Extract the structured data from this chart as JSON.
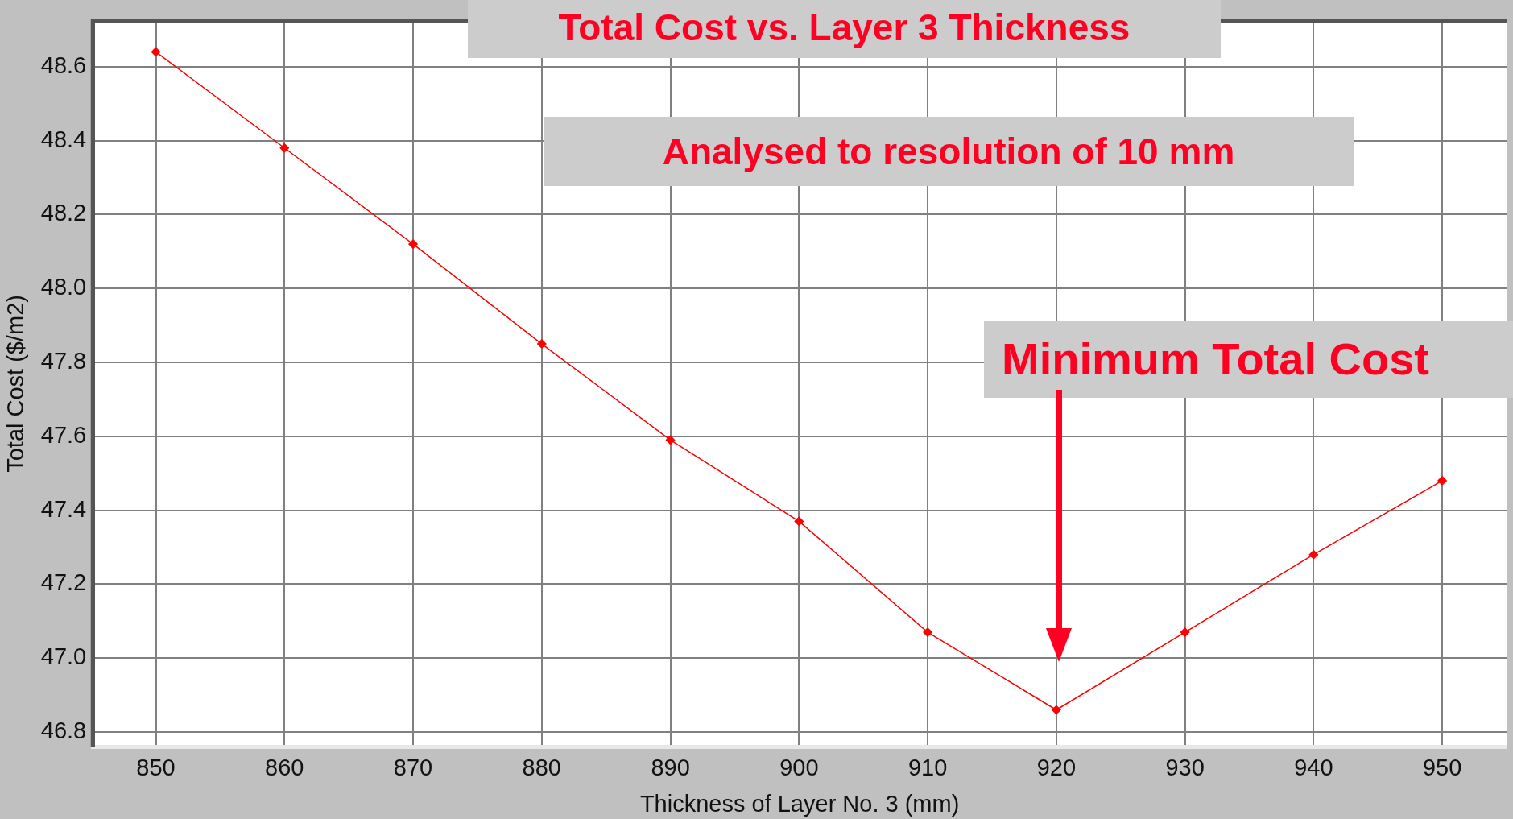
{
  "chart_data": {
    "type": "line",
    "title": "Total Cost vs. Layer 3 Thickness",
    "xlabel": "Thickness of Layer No. 3 (mm)",
    "ylabel": "Total Cost ($/m2)",
    "x": [
      850,
      860,
      870,
      880,
      890,
      900,
      910,
      920,
      930,
      940,
      950
    ],
    "series": [
      {
        "color": "#ff0000",
        "values": [
          48.64,
          48.38,
          48.12,
          47.85,
          47.59,
          47.37,
          47.07,
          46.86,
          47.07,
          47.28,
          47.48
        ]
      }
    ],
    "xlim": [
      845.1,
      955
    ],
    "xticks": [
      850,
      860,
      870,
      880,
      890,
      900,
      910,
      920,
      930,
      940,
      950
    ],
    "ylim": [
      46.76,
      48.725
    ],
    "yticks": [
      {
        "value": 46.8,
        "label": "46.8"
      },
      {
        "value": 47,
        "label": "47.0"
      },
      {
        "value": 47.2,
        "label": "47.2"
      },
      {
        "value": 47.4,
        "label": "47.4"
      },
      {
        "value": 47.6,
        "label": "47.6"
      },
      {
        "value": 47.8,
        "label": "47.8"
      },
      {
        "value": 48,
        "label": "48.0"
      },
      {
        "value": 48.2,
        "label": "48.2"
      },
      {
        "value": 48.4,
        "label": "48.4"
      },
      {
        "value": 48.6,
        "label": "48.6"
      }
    ],
    "annotations": [
      "Analysed to resolution of 10 mm",
      "Minimum Total Cost"
    ],
    "grid": true,
    "legend": false,
    "marker": "diamond",
    "line_style": "solid"
  }
}
